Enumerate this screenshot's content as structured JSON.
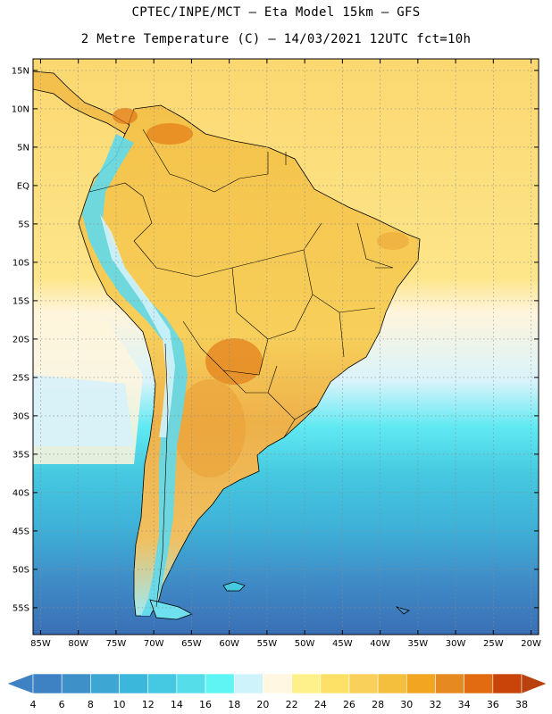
{
  "header": {
    "line1": "CPTEC/INPE/MCT –  Eta Model 15km – GFS",
    "line2": "2 Metre Temperature (C) – 14/03/2021 12UTC fct=10h"
  },
  "map": {
    "lon_range": [
      -86,
      -19
    ],
    "lat_range": [
      -58.5,
      16.5
    ],
    "lon_ticks": [
      {
        "value": -85,
        "label": "85W"
      },
      {
        "value": -80,
        "label": "80W"
      },
      {
        "value": -75,
        "label": "75W"
      },
      {
        "value": -70,
        "label": "70W"
      },
      {
        "value": -65,
        "label": "65W"
      },
      {
        "value": -60,
        "label": "60W"
      },
      {
        "value": -55,
        "label": "55W"
      },
      {
        "value": -50,
        "label": "50W"
      },
      {
        "value": -45,
        "label": "45W"
      },
      {
        "value": -40,
        "label": "40W"
      },
      {
        "value": -35,
        "label": "35W"
      },
      {
        "value": -30,
        "label": "30W"
      },
      {
        "value": -25,
        "label": "25W"
      },
      {
        "value": -20,
        "label": "20W"
      }
    ],
    "lat_ticks": [
      {
        "value": 15,
        "label": "15N"
      },
      {
        "value": 10,
        "label": "10N"
      },
      {
        "value": 5,
        "label": "5N"
      },
      {
        "value": 0,
        "label": "EQ"
      },
      {
        "value": -5,
        "label": "5S"
      },
      {
        "value": -10,
        "label": "10S"
      },
      {
        "value": -15,
        "label": "15S"
      },
      {
        "value": -20,
        "label": "20S"
      },
      {
        "value": -25,
        "label": "25S"
      },
      {
        "value": -30,
        "label": "30S"
      },
      {
        "value": -35,
        "label": "35S"
      },
      {
        "value": -40,
        "label": "40S"
      },
      {
        "value": -45,
        "label": "45S"
      },
      {
        "value": -50,
        "label": "50S"
      },
      {
        "value": -55,
        "label": "55S"
      }
    ]
  },
  "colorbar": {
    "values": [
      "4",
      "6",
      "8",
      "10",
      "12",
      "14",
      "16",
      "18",
      "20",
      "22",
      "24",
      "26",
      "28",
      "30",
      "32",
      "34",
      "36",
      "38"
    ],
    "colors": [
      "#3f82c4",
      "#3f82c4",
      "#3e91c8",
      "#3ea6d2",
      "#3cb7dc",
      "#45c8e2",
      "#55dde9",
      "#5ff5f5",
      "#cef3fb",
      "#fff7e2",
      "#fef08a",
      "#fde066",
      "#f9d05a",
      "#f3bf3c",
      "#f1a521",
      "#e78921",
      "#e26b12",
      "#c84409",
      "#b8410e"
    ]
  }
}
